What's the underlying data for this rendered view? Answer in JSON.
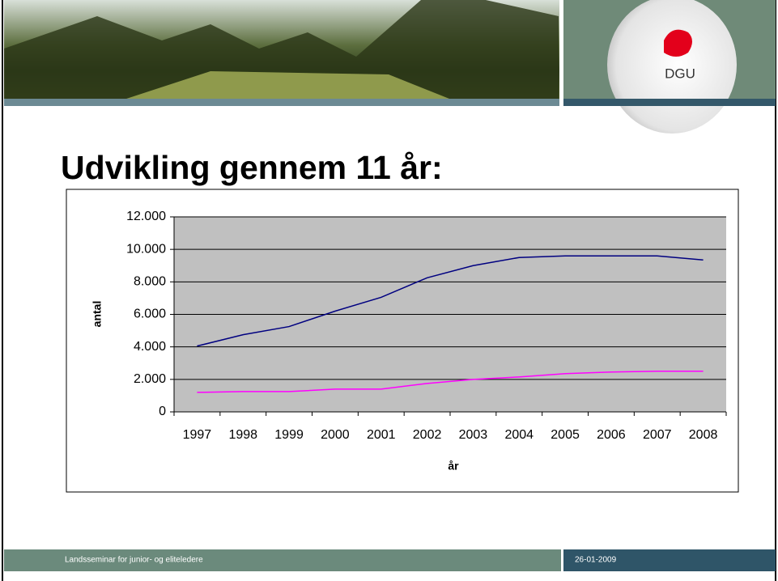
{
  "chart_data": {
    "type": "line",
    "title": "Udvikling gennem 11 år:",
    "x_label": "år",
    "y_label": "antal",
    "categories": [
      "1997",
      "1998",
      "1999",
      "2000",
      "2001",
      "2002",
      "2003",
      "2004",
      "2005",
      "2006",
      "2007",
      "2008"
    ],
    "series": [
      {
        "color": "#000080",
        "values": [
          4050,
          4750,
          5250,
          6200,
          7050,
          8250,
          9000,
          9500,
          9600,
          9600,
          9600,
          9350
        ]
      },
      {
        "color": "#ff00ff",
        "values": [
          1200,
          1250,
          1250,
          1400,
          1400,
          1750,
          2000,
          2150,
          2350,
          2450,
          2500,
          2500
        ]
      }
    ],
    "ylim": [
      0,
      12000
    ],
    "yticks": [
      0,
      {
        "value": 2000,
        "label": "2.000"
      },
      {
        "value": 4000,
        "label": "4.000"
      },
      {
        "value": 6000,
        "label": "6.000"
      },
      {
        "value": 8000,
        "label": "8.000"
      },
      {
        "value": 10000,
        "label": "10.000"
      },
      {
        "value": 12000,
        "label": "12.000"
      }
    ],
    "grid": true
  },
  "header": {
    "logo_text": "DGU"
  },
  "footer": {
    "left": "Landsseminar for junior- og eliteledere",
    "right": "26-01-2009"
  }
}
